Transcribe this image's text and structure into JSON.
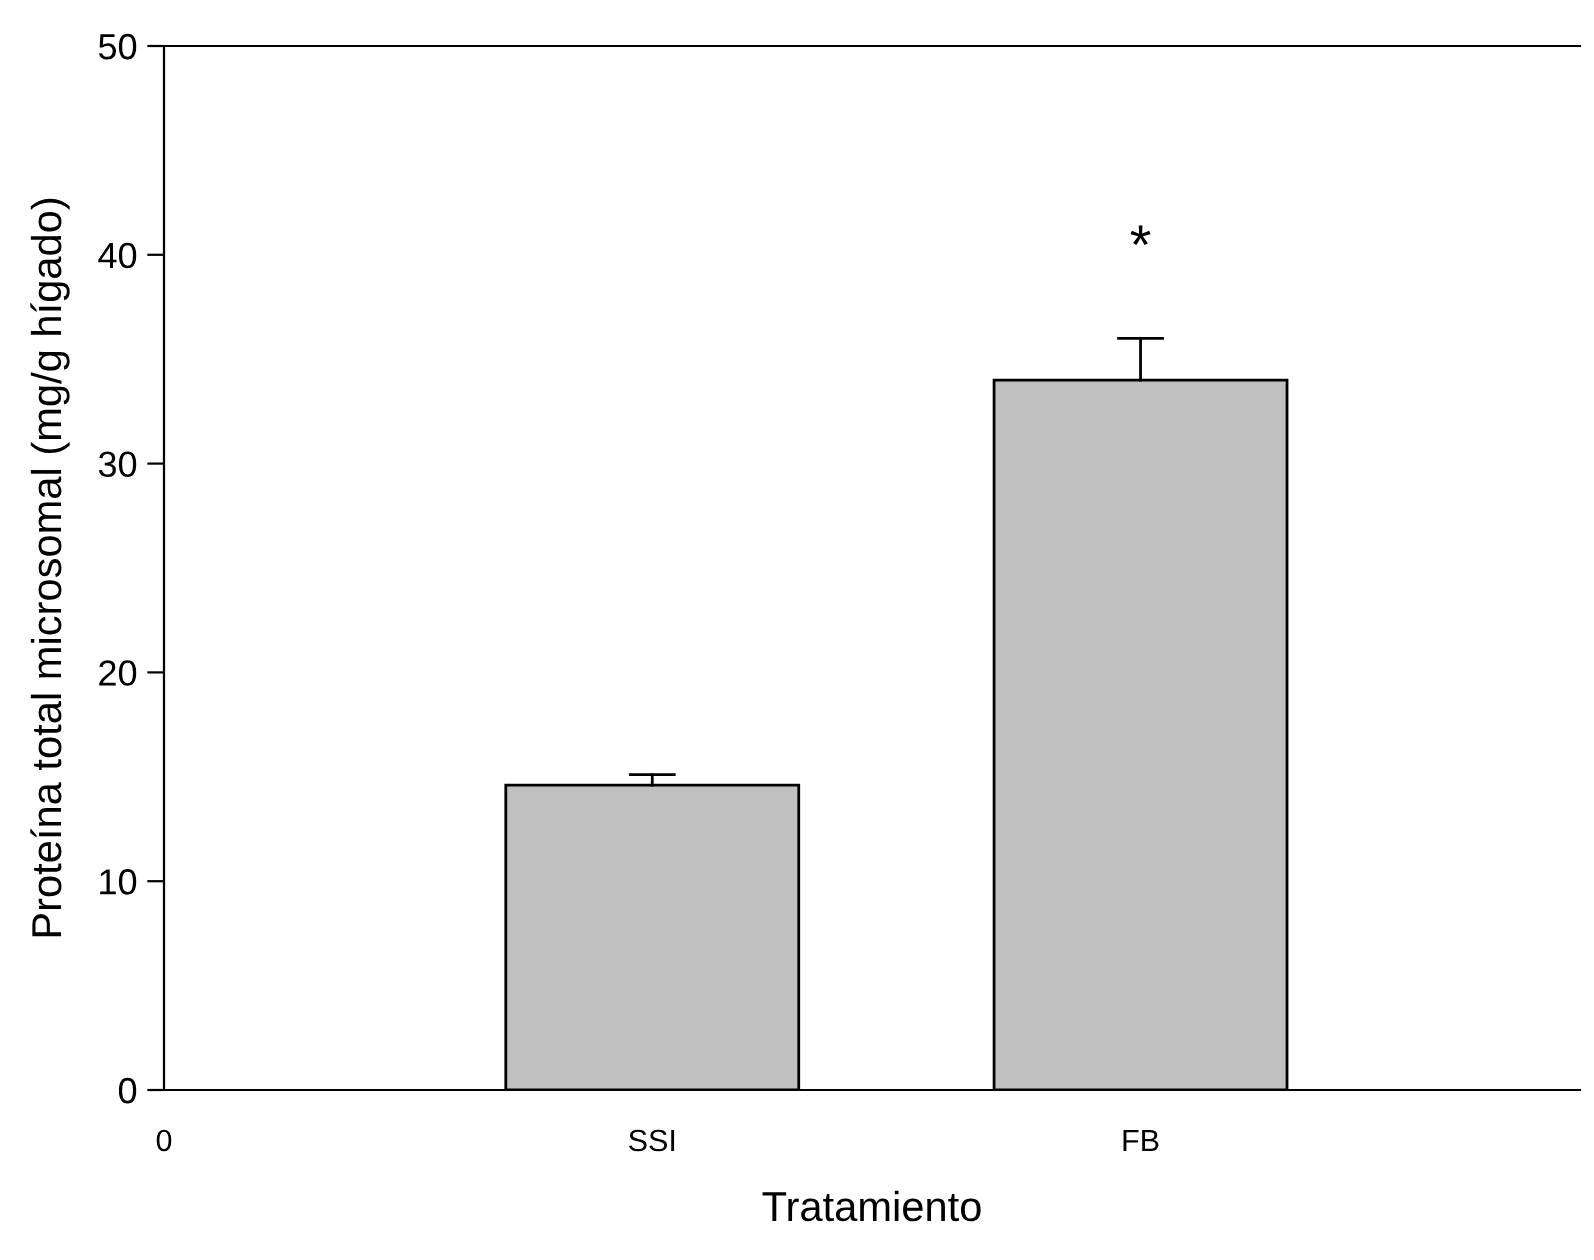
{
  "chart_data": {
    "type": "bar",
    "xlabel": "Tratamiento",
    "ylabel": "Proteína total microsomal (mg/g hígado)",
    "categories": [
      "0",
      "SSI",
      "FB"
    ],
    "values": [
      null,
      14.6,
      34.0
    ],
    "errors": [
      null,
      [
        14.6,
        15.1
      ],
      [
        34.0,
        36.0
      ]
    ],
    "color": "#c0c0c0",
    "ylim": [
      0,
      50
    ],
    "yticks": [
      0,
      10,
      20,
      30,
      40,
      50
    ],
    "grid": false,
    "legend": false,
    "annotations": [
      "*"
    ]
  }
}
